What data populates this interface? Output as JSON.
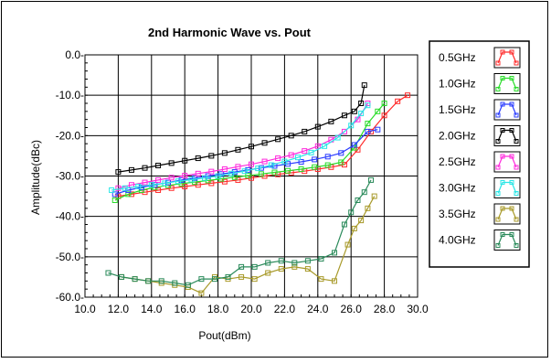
{
  "chart_data": {
    "type": "line",
    "title": "2nd Harmonic Wave vs. Pout",
    "xlabel": "Pout(dBm)",
    "ylabel": "Amplitude(dBc)",
    "xlim": [
      10.0,
      30.0
    ],
    "ylim": [
      -60.0,
      0.0
    ],
    "x_ticks": [
      "10.0",
      "12.0",
      "14.0",
      "16.0",
      "18.0",
      "20.0",
      "22.0",
      "24.0",
      "26.0",
      "28.0",
      "30.0"
    ],
    "y_ticks": [
      "0.0-",
      "-10.0-",
      "-20.0-",
      "-30.0-",
      "-40.0-",
      "-50.0-",
      "-60.0-"
    ],
    "grid": true,
    "legend_position": "right",
    "series": [
      {
        "name": "0.5GHz",
        "color": "#ff2a2a",
        "x": [
          12.0,
          12.8,
          13.6,
          14.4,
          15.2,
          16.0,
          16.8,
          17.6,
          18.4,
          19.2,
          20.0,
          20.8,
          21.6,
          22.4,
          23.2,
          24.0,
          24.8,
          25.6,
          26.4,
          27.2,
          28.0,
          28.8,
          29.4
        ],
        "y": [
          -35.0,
          -34.5,
          -34.0,
          -33.5,
          -33.0,
          -32.6,
          -32.2,
          -31.8,
          -31.4,
          -31.0,
          -30.5,
          -30.0,
          -29.6,
          -29.2,
          -28.8,
          -28.3,
          -27.8,
          -27.2,
          -23.5,
          -19.0,
          -15.0,
          -11.5,
          -10.0
        ]
      },
      {
        "name": "1.0GHz",
        "color": "#2adc2a",
        "x": [
          11.8,
          12.6,
          13.4,
          14.2,
          15.0,
          15.8,
          16.6,
          17.4,
          18.2,
          19.0,
          19.8,
          20.6,
          21.4,
          22.2,
          23.0,
          23.8,
          24.6,
          25.4,
          26.2,
          27.0,
          27.6,
          28.0
        ],
        "y": [
          -36.0,
          -34.5,
          -33.5,
          -32.8,
          -32.3,
          -31.9,
          -31.5,
          -31.1,
          -30.7,
          -30.3,
          -29.9,
          -29.5,
          -29.1,
          -28.7,
          -28.3,
          -27.8,
          -27.3,
          -26.6,
          -23.0,
          -17.0,
          -14.0,
          -12.0
        ]
      },
      {
        "name": "1.5GHz",
        "color": "#2a3cff",
        "x": [
          11.8,
          12.6,
          13.4,
          14.2,
          15.0,
          15.8,
          16.6,
          17.4,
          18.2,
          19.0,
          19.8,
          20.6,
          21.4,
          22.2,
          23.0,
          23.8,
          24.6,
          25.4,
          26.2,
          27.0,
          27.6
        ],
        "y": [
          -34.5,
          -33.5,
          -32.8,
          -32.2,
          -31.6,
          -31.0,
          -30.5,
          -30.0,
          -29.5,
          -29.0,
          -28.5,
          -28.0,
          -27.5,
          -27.0,
          -26.5,
          -25.9,
          -25.2,
          -24.3,
          -22.3,
          -19.0,
          -18.5
        ]
      },
      {
        "name": "2.0GHz",
        "color": "#000000",
        "x": [
          12.0,
          12.8,
          13.6,
          14.4,
          15.2,
          16.0,
          16.8,
          17.6,
          18.4,
          19.2,
          20.0,
          20.8,
          21.6,
          22.4,
          23.2,
          24.0,
          24.8,
          25.6,
          26.2,
          26.6,
          26.8
        ],
        "y": [
          -29.0,
          -28.5,
          -28.0,
          -27.4,
          -26.8,
          -26.2,
          -25.6,
          -25.0,
          -24.3,
          -23.5,
          -22.7,
          -21.8,
          -20.9,
          -20.0,
          -19.0,
          -17.8,
          -16.5,
          -15.0,
          -14.0,
          -12.0,
          -7.5
        ]
      },
      {
        "name": "2.5GHz",
        "color": "#ff2adc",
        "x": [
          12.0,
          12.8,
          13.6,
          14.4,
          15.2,
          16.0,
          16.8,
          17.6,
          18.4,
          19.2,
          20.0,
          20.8,
          21.6,
          22.4,
          23.2,
          24.0,
          24.8,
          25.6,
          26.4,
          27.0
        ],
        "y": [
          -33.0,
          -32.2,
          -31.6,
          -31.0,
          -30.4,
          -29.9,
          -29.4,
          -28.9,
          -28.3,
          -27.7,
          -27.1,
          -26.4,
          -25.6,
          -24.8,
          -23.8,
          -22.6,
          -21.0,
          -19.0,
          -16.0,
          -12.0
        ]
      },
      {
        "name": "3.0GHz",
        "color": "#2ae6e6",
        "x": [
          11.6,
          12.4,
          13.2,
          14.0,
          14.8,
          15.6,
          16.4,
          17.2,
          18.0,
          18.8,
          19.6,
          20.4,
          21.2,
          22.0,
          22.8,
          23.6,
          24.4,
          25.2,
          26.0,
          26.6,
          27.0
        ],
        "y": [
          -33.5,
          -33.0,
          -32.6,
          -32.2,
          -31.8,
          -31.3,
          -30.9,
          -30.5,
          -30.0,
          -29.4,
          -28.8,
          -28.1,
          -27.3,
          -26.4,
          -25.4,
          -24.2,
          -22.6,
          -20.5,
          -17.5,
          -14.5,
          -12.5
        ]
      },
      {
        "name": "3.5GHz",
        "color": "#a89a2a",
        "x": [
          12.2,
          13.0,
          13.8,
          14.6,
          15.4,
          16.2,
          17.0,
          17.8,
          18.6,
          19.4,
          20.2,
          21.0,
          21.8,
          22.6,
          23.4,
          24.2,
          25.0,
          25.8,
          26.2,
          26.6,
          27.0,
          27.4
        ],
        "y": [
          -55.0,
          -55.5,
          -56.0,
          -56.5,
          -57.0,
          -57.5,
          -59.0,
          -55.0,
          -55.5,
          -55.0,
          -55.5,
          -54.0,
          -53.0,
          -52.5,
          -53.0,
          -55.5,
          -56.0,
          -47.0,
          -43.0,
          -41.0,
          -38.0,
          -35.0
        ]
      },
      {
        "name": "4.0GHz",
        "color": "#2a8a5a",
        "x": [
          11.4,
          12.2,
          13.0,
          13.8,
          14.6,
          15.4,
          16.2,
          17.0,
          17.8,
          18.6,
          19.4,
          20.2,
          21.0,
          21.8,
          22.6,
          23.4,
          24.2,
          25.0,
          25.6,
          26.0,
          26.4,
          26.8,
          27.2
        ],
        "y": [
          -54.0,
          -55.0,
          -55.5,
          -56.0,
          -56.0,
          -56.5,
          -57.0,
          -55.5,
          -55.5,
          -55.0,
          -52.5,
          -52.5,
          -51.5,
          -51.0,
          -51.5,
          -51.0,
          -50.5,
          -49.0,
          -42.0,
          -39.0,
          -36.0,
          -34.0,
          -31.0
        ]
      }
    ]
  }
}
